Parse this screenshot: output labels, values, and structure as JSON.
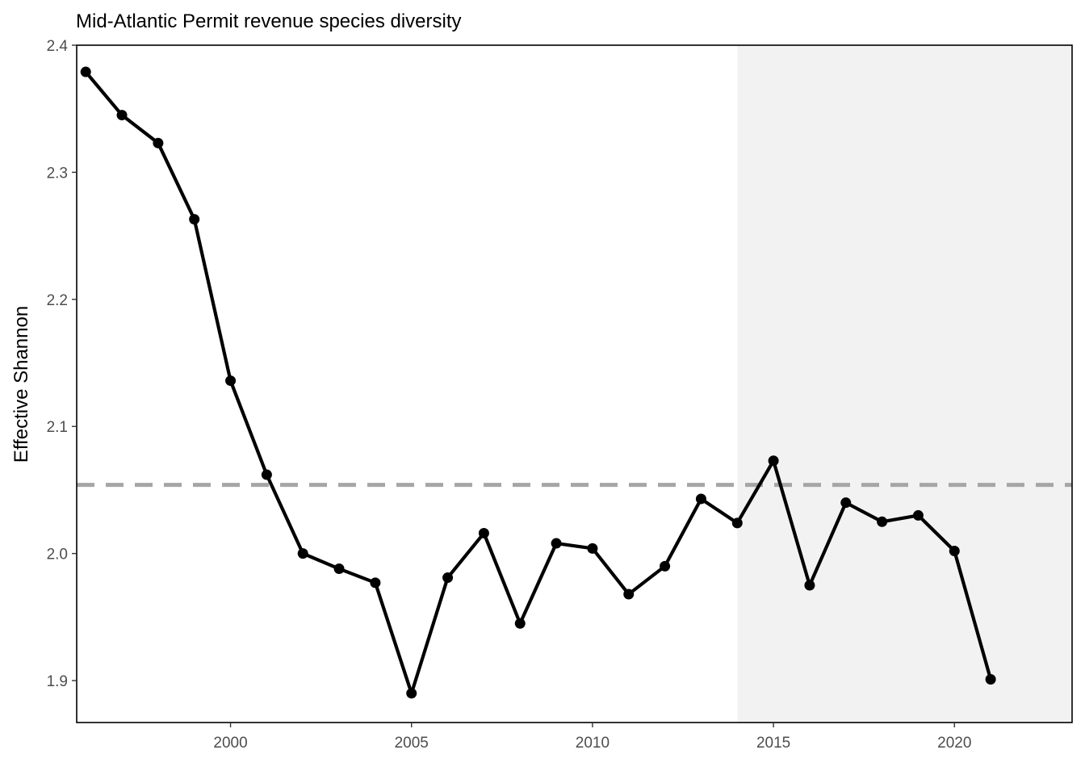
{
  "chart_data": {
    "type": "line",
    "title": "Mid-Atlantic Permit revenue species diversity",
    "xlabel": "",
    "ylabel": "Effective Shannon",
    "xlim": [
      1995.75,
      2023.25
    ],
    "ylim": [
      1.867,
      2.4
    ],
    "xticks": [
      2000,
      2005,
      2010,
      2015,
      2020
    ],
    "yticks": [
      1.9,
      2.0,
      2.1,
      2.2,
      2.3,
      2.4
    ],
    "ytick_labels": [
      "1.9",
      "2.0",
      "2.1",
      "2.2",
      "2.3",
      "2.4"
    ],
    "grid": false,
    "shaded_region": {
      "x_start": 2014,
      "x_end": 2023.25,
      "color": "#f2f2f2"
    },
    "reference_line": {
      "y": 2.054,
      "style": "dashed",
      "color": "#a6a6a6"
    },
    "series": [
      {
        "color": "#000000",
        "x": [
          1996,
          1997,
          1998,
          1999,
          2000,
          2001,
          2002,
          2003,
          2004,
          2005,
          2006,
          2007,
          2008,
          2009,
          2010,
          2011,
          2012,
          2013,
          2014,
          2015,
          2016,
          2017,
          2018,
          2019,
          2020,
          2021
        ],
        "y": [
          2.379,
          2.345,
          2.323,
          2.263,
          2.136,
          2.062,
          2.0,
          1.988,
          1.977,
          1.89,
          1.981,
          2.016,
          1.945,
          2.008,
          2.004,
          1.968,
          1.99,
          2.043,
          2.024,
          2.073,
          1.975,
          2.04,
          2.025,
          2.03,
          2.002,
          1.901
        ]
      }
    ]
  }
}
